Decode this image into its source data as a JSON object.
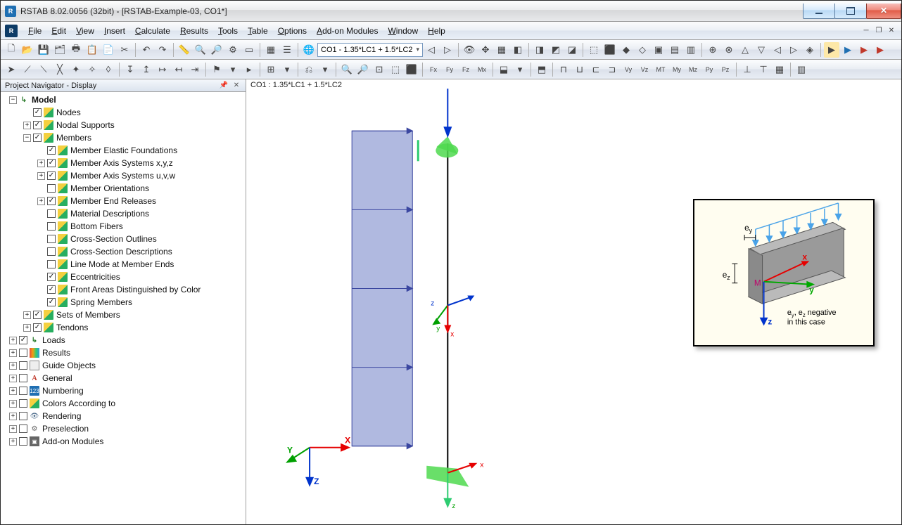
{
  "window": {
    "title": "RSTAB 8.02.0056 (32bit) - [RSTAB-Example-03, CO1*]",
    "app_glyph": "R"
  },
  "menu": [
    "File",
    "Edit",
    "View",
    "Insert",
    "Calculate",
    "Results",
    "Tools",
    "Table",
    "Options",
    "Add-on Modules",
    "Window",
    "Help"
  ],
  "toolbar": {
    "combo": "CO1 - 1.35*LC1 + 1.5*LC2"
  },
  "navigator": {
    "title": "Project Navigator - Display"
  },
  "tree": [
    {
      "d": 0,
      "exp": "-",
      "chk": null,
      "ico": "arrow",
      "label": "Model",
      "bold": true
    },
    {
      "d": 1,
      "exp": " ",
      "chk": true,
      "ico": "pencil",
      "label": "Nodes"
    },
    {
      "d": 1,
      "exp": "+",
      "chk": true,
      "ico": "pencil",
      "label": "Nodal Supports"
    },
    {
      "d": 1,
      "exp": "-",
      "chk": true,
      "ico": "pencil",
      "label": "Members"
    },
    {
      "d": 2,
      "exp": " ",
      "chk": true,
      "ico": "pencil",
      "label": "Member Elastic Foundations"
    },
    {
      "d": 2,
      "exp": "+",
      "chk": true,
      "ico": "pencil",
      "label": "Member Axis Systems x,y,z"
    },
    {
      "d": 2,
      "exp": "+",
      "chk": true,
      "ico": "pencil",
      "label": "Member Axis Systems u,v,w"
    },
    {
      "d": 2,
      "exp": " ",
      "chk": false,
      "ico": "pencil",
      "label": "Member Orientations"
    },
    {
      "d": 2,
      "exp": "+",
      "chk": true,
      "ico": "pencil",
      "label": "Member End Releases"
    },
    {
      "d": 2,
      "exp": " ",
      "chk": false,
      "ico": "pencil",
      "label": "Material Descriptions"
    },
    {
      "d": 2,
      "exp": " ",
      "chk": false,
      "ico": "pencil",
      "label": "Bottom Fibers"
    },
    {
      "d": 2,
      "exp": " ",
      "chk": false,
      "ico": "pencil",
      "label": "Cross-Section Outlines"
    },
    {
      "d": 2,
      "exp": " ",
      "chk": false,
      "ico": "pencil",
      "label": "Cross-Section Descriptions"
    },
    {
      "d": 2,
      "exp": " ",
      "chk": false,
      "ico": "pencil",
      "label": "Line Mode at Member Ends"
    },
    {
      "d": 2,
      "exp": " ",
      "chk": true,
      "ico": "pencil",
      "label": "Eccentricities"
    },
    {
      "d": 2,
      "exp": " ",
      "chk": true,
      "ico": "pencil",
      "label": "Front Areas Distinguished by Color"
    },
    {
      "d": 2,
      "exp": " ",
      "chk": true,
      "ico": "pencil",
      "label": "Spring Members"
    },
    {
      "d": 1,
      "exp": "+",
      "chk": true,
      "ico": "pencil",
      "label": "Sets of Members"
    },
    {
      "d": 1,
      "exp": "+",
      "chk": true,
      "ico": "pencil",
      "label": "Tendons"
    },
    {
      "d": 0,
      "exp": "+",
      "chk": true,
      "ico": "arrow",
      "label": "Loads"
    },
    {
      "d": 0,
      "exp": "+",
      "chk": false,
      "ico": "grad",
      "label": "Results"
    },
    {
      "d": 0,
      "exp": "+",
      "chk": false,
      "ico": "box",
      "label": "Guide Objects"
    },
    {
      "d": 0,
      "exp": "+",
      "chk": false,
      "ico": "A",
      "label": "General"
    },
    {
      "d": 0,
      "exp": "+",
      "chk": false,
      "ico": "num",
      "label": "Numbering"
    },
    {
      "d": 0,
      "exp": "+",
      "chk": false,
      "ico": "pencil",
      "label": "Colors According to"
    },
    {
      "d": 0,
      "exp": "+",
      "chk": false,
      "ico": "eye",
      "label": "Rendering"
    },
    {
      "d": 0,
      "exp": "+",
      "chk": false,
      "ico": "gear",
      "label": "Preselection"
    },
    {
      "d": 0,
      "exp": "+",
      "chk": false,
      "ico": "mod",
      "label": "Add-on Modules"
    }
  ],
  "viewport": {
    "label": "CO1 : 1.35*LC1 + 1.5*LC2",
    "global_axes": {
      "x": "X",
      "y": "Y",
      "z": "Z",
      "colors": {
        "x": "#e60000",
        "y": "#00a000",
        "z": "#0033cc"
      }
    },
    "local_axes": {
      "x": "x",
      "y": "y",
      "z": "z"
    },
    "beam": {
      "loadbars": 5,
      "panel_color": "#b0b9e0",
      "panel_border": "#3a46a0",
      "support_color": "#4fd94f",
      "member_color": "#000"
    },
    "legend": {
      "ey": "e",
      "ey_sub": "y",
      "ez": "e",
      "ez_sub": "z",
      "m": "M",
      "x": "x",
      "y": "y",
      "z": "z",
      "note1": "e",
      "note_sub1": "y",
      "comma": ", ",
      "note2": "e",
      "note_sub2": "z",
      "note_tail": "  negative",
      "note_line2": "in this case",
      "beam_fill": "#bababa",
      "beam_dark": "#8a8a8a",
      "arrow_x": "#e60000",
      "arrow_y": "#00a800",
      "arrow_z": "#0033cc",
      "distr_load": "#4aa3e8"
    }
  }
}
